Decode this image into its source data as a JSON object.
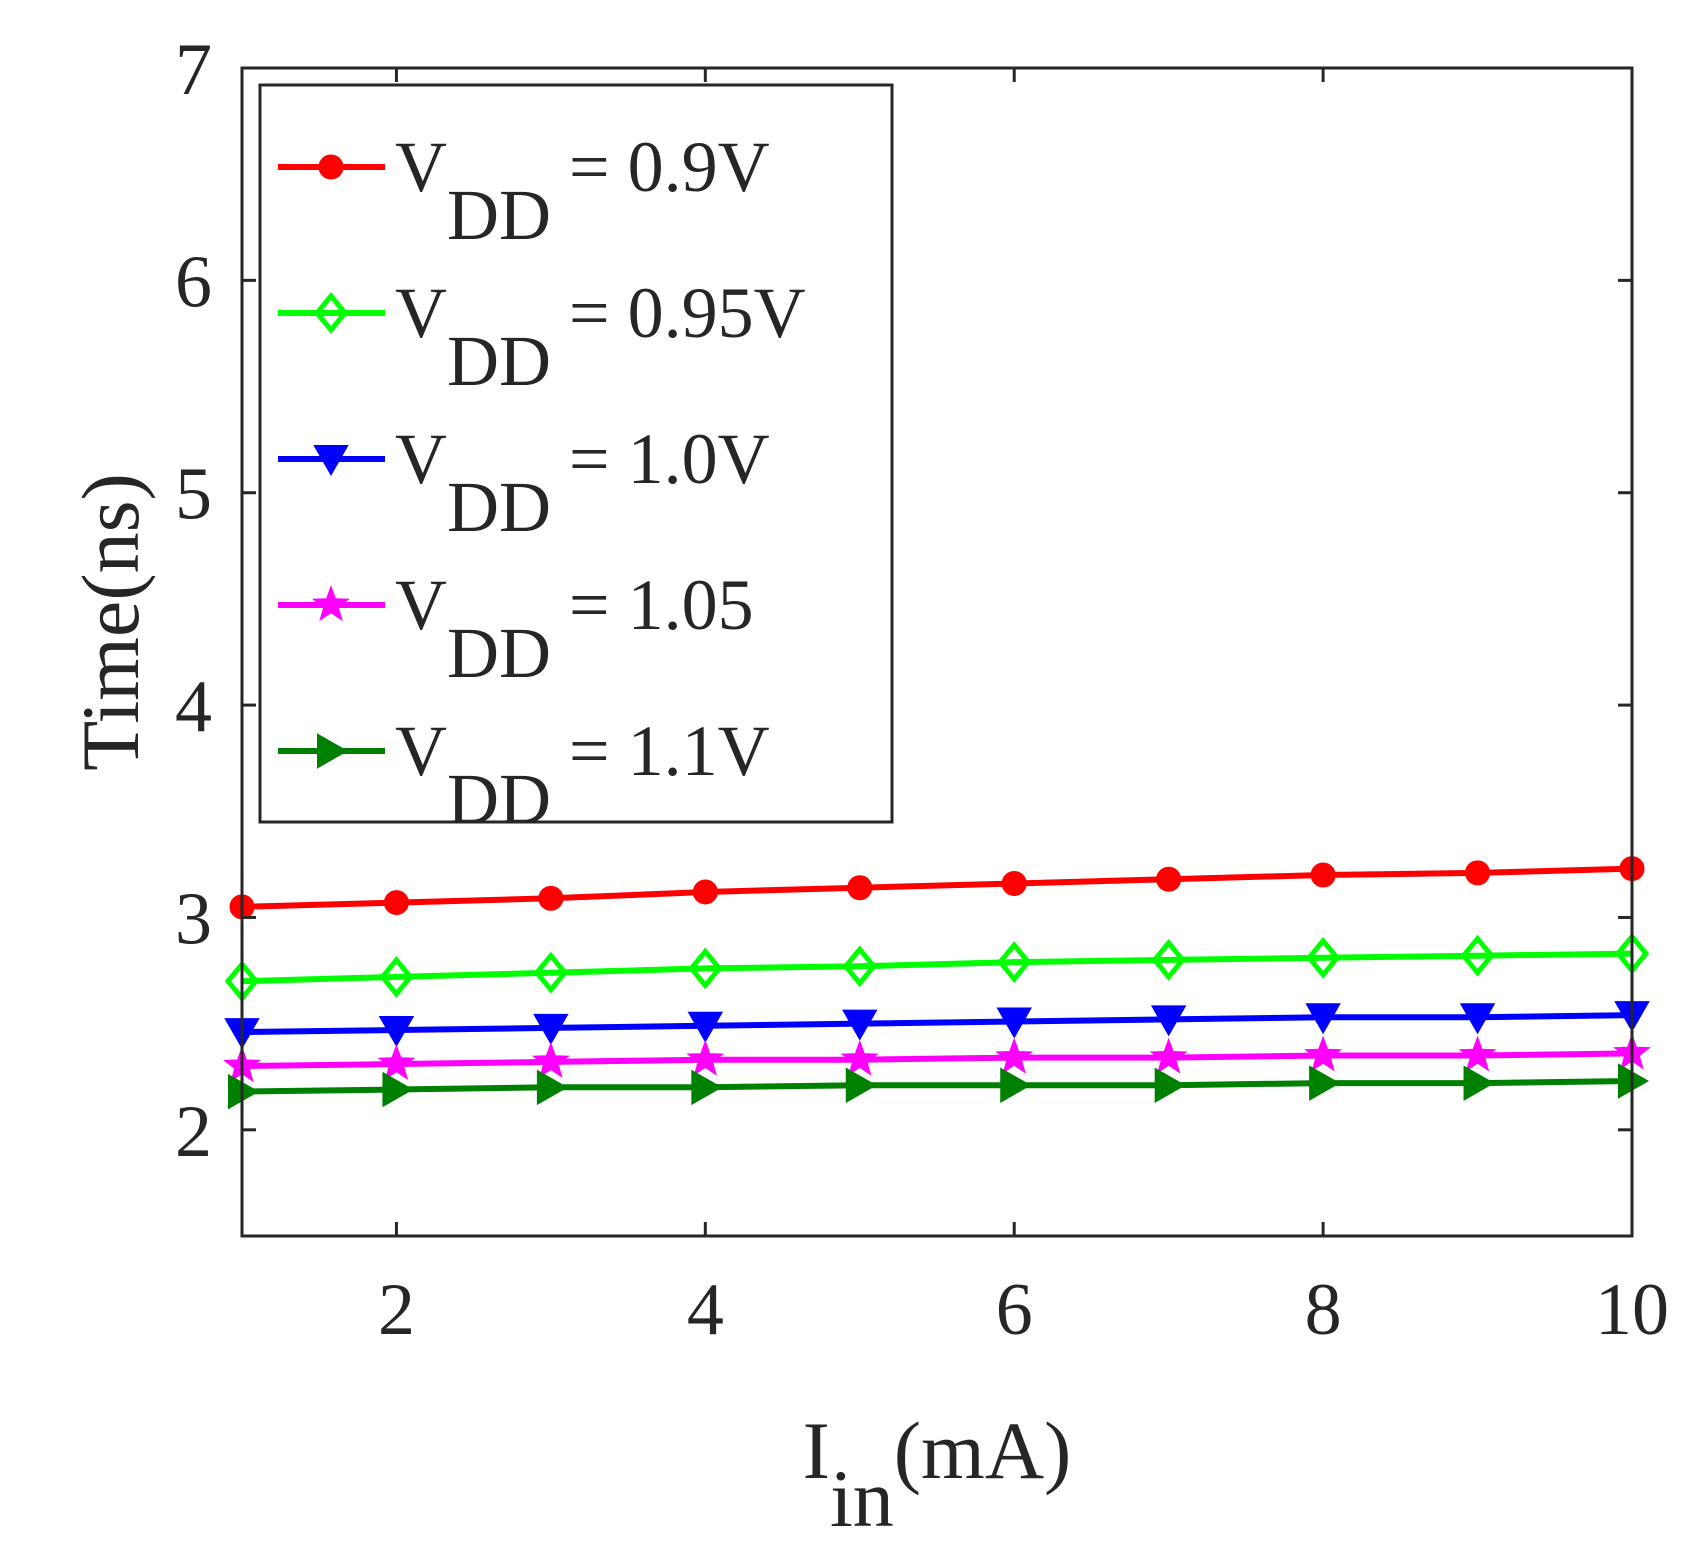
{
  "chart_data": {
    "type": "line",
    "xlabel": {
      "main": "I",
      "sub": "in",
      "rest": "(mA)"
    },
    "ylabel": "Time(ns)",
    "xlim": [
      1,
      10
    ],
    "ylim": [
      1.5,
      7
    ],
    "xticks": [
      2,
      4,
      6,
      8,
      10
    ],
    "yticks": [
      2,
      3,
      4,
      5,
      6,
      7
    ],
    "grid": false,
    "legend_position": "top-left",
    "x": [
      1,
      2,
      3,
      4,
      5,
      6,
      7,
      8,
      9,
      10
    ],
    "series": [
      {
        "name": {
          "main": "V",
          "sub": "DD",
          "rest": " = 0.9V"
        },
        "color": "#ff0000",
        "marker": "circle",
        "values": [
          3.05,
          3.07,
          3.09,
          3.12,
          3.14,
          3.16,
          3.18,
          3.2,
          3.21,
          3.23
        ]
      },
      {
        "name": {
          "main": "V",
          "sub": "DD",
          "rest": " = 0.95V"
        },
        "color": "#00ff00",
        "marker": "diamond",
        "values": [
          2.7,
          2.72,
          2.74,
          2.76,
          2.77,
          2.79,
          2.8,
          2.81,
          2.82,
          2.83
        ]
      },
      {
        "name": {
          "main": "V",
          "sub": "DD",
          "rest": " = 1.0V"
        },
        "color": "#0000ff",
        "marker": "triangle-down",
        "values": [
          2.46,
          2.47,
          2.48,
          2.49,
          2.5,
          2.51,
          2.52,
          2.53,
          2.53,
          2.54
        ]
      },
      {
        "name": {
          "main": "V",
          "sub": "DD",
          "rest": " = 1.05"
        },
        "color": "#ff00ff",
        "marker": "star",
        "values": [
          2.3,
          2.31,
          2.32,
          2.33,
          2.33,
          2.34,
          2.34,
          2.35,
          2.35,
          2.36
        ]
      },
      {
        "name": {
          "main": "V",
          "sub": "DD",
          "rest": " = 1.1V"
        },
        "color": "#008000",
        "marker": "triangle-right",
        "values": [
          2.18,
          2.19,
          2.2,
          2.2,
          2.21,
          2.21,
          2.21,
          2.22,
          2.22,
          2.23
        ]
      }
    ]
  }
}
